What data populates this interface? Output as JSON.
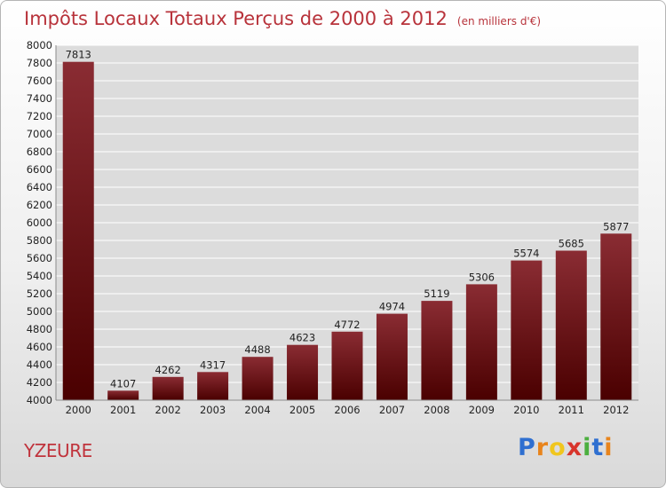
{
  "header": {
    "title": "Impôts Locaux Totaux Perçus de 2000 à 2012",
    "unit_note": "(en milliers d'€)"
  },
  "footer": {
    "commune": "YZEURE",
    "brand": "Proxiti"
  },
  "colors": {
    "bar_top": "#8a2c33",
    "bar_bottom": "#4a0000",
    "title": "#b8333b",
    "grid": "#ffffff",
    "plot_bg": "#dcdcdc"
  },
  "chart_data": {
    "type": "bar",
    "title": "Impôts Locaux Totaux Perçus de 2000 à 2012",
    "xlabel": "",
    "ylabel": "",
    "ylim": [
      4000,
      8000
    ],
    "ytick_step": 200,
    "grid": true,
    "legend": "none",
    "categories": [
      "2000",
      "2001",
      "2002",
      "2003",
      "2004",
      "2005",
      "2006",
      "2007",
      "2008",
      "2009",
      "2010",
      "2011",
      "2012"
    ],
    "values": [
      7813,
      4107,
      4262,
      4317,
      4488,
      4623,
      4772,
      4974,
      5119,
      5306,
      5574,
      5685,
      5877
    ]
  }
}
